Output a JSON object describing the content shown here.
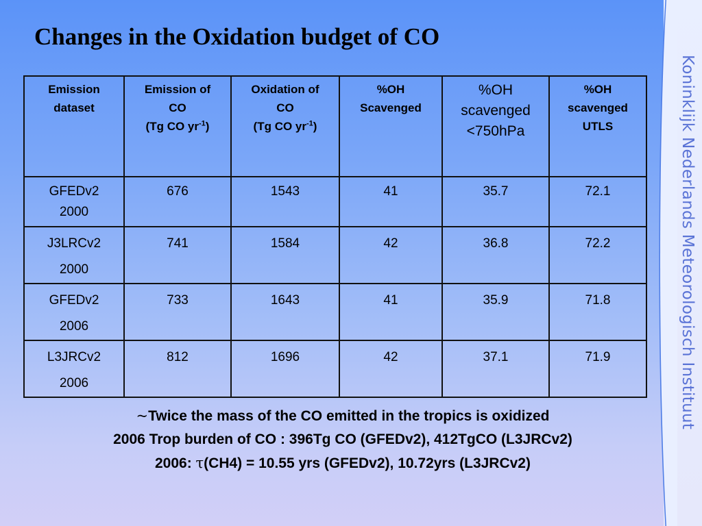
{
  "slide": {
    "title": "Changes in the Oxidation budget of CO",
    "side_logo_text": "Koninklijk Nederlands Meteorologisch Instituut"
  },
  "table": {
    "headers": [
      {
        "lines": [
          "Emission",
          "dataset"
        ]
      },
      {
        "lines": [
          "Emission of",
          "CO"
        ],
        "unit_prefix": "(Tg CO yr",
        "unit_sup": "-1",
        "unit_suffix": ")"
      },
      {
        "lines": [
          "Oxidation of",
          "CO"
        ],
        "unit_prefix": "(Tg CO yr",
        "unit_sup": "-1",
        "unit_suffix": ")"
      },
      {
        "lines": [
          "%OH",
          "Scavenged"
        ]
      },
      {
        "lines": [
          "%OH",
          "scavenged",
          "<750hPa"
        ]
      },
      {
        "lines": [
          "%OH",
          "scavenged",
          "UTLS"
        ]
      }
    ],
    "rows": [
      {
        "dataset": [
          "GFEDv2",
          "2000"
        ],
        "emission": "676",
        "oxidation": "1543",
        "oh_scavenged": "41",
        "oh_750": "35.7",
        "oh_utls": "72.1"
      },
      {
        "dataset": [
          "J3LRCv2",
          "2000"
        ],
        "emission": "741",
        "oxidation": "1584",
        "oh_scavenged": "42",
        "oh_750": "36.8",
        "oh_utls": "72.2"
      },
      {
        "dataset": [
          "GFEDv2",
          "2006"
        ],
        "emission": "733",
        "oxidation": "1643",
        "oh_scavenged": "41",
        "oh_750": "35.9",
        "oh_utls": "71.8"
      },
      {
        "dataset": [
          "L3JRCv2",
          "2006"
        ],
        "emission": "812",
        "oxidation": "1696",
        "oh_scavenged": "42",
        "oh_750": "37.1",
        "oh_utls": "71.9"
      }
    ]
  },
  "summary": {
    "line1_symbol": "~",
    "line1_text": "Twice the mass of the CO emitted in the tropics is oxidized",
    "line2": "2006 Trop burden of CO : 396Tg CO (GFEDv2), 412TgCO (L3JRCv2)",
    "line3_prefix": "2006: ",
    "line3_symbol": "τ",
    "line3_text": "(CH4) = 10.55 yrs (GFEDv2), 10.72yrs (L3JRCv2)"
  },
  "colors": {
    "background_top": "#5b93f8",
    "background_bottom": "#d2cff7",
    "side_band": "#e9efff",
    "side_text": "#5a73d6",
    "curve_line": "#4f7ee6"
  }
}
